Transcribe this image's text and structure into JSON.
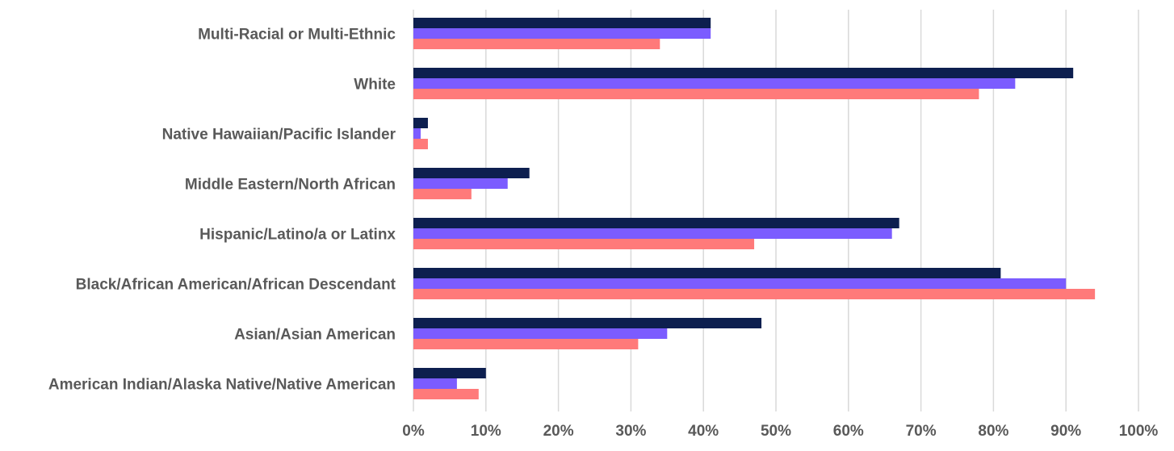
{
  "chart_data": {
    "type": "bar",
    "orientation": "horizontal",
    "categories": [
      "Multi-Racial or Multi-Ethnic",
      "White",
      "Native Hawaiian/Pacific Islander",
      "Middle Eastern/North African",
      "Hispanic/Latino/a or Latinx",
      "Black/African American/African Descendant",
      "Asian/Asian American",
      "American Indian/Alaska Native/Native American"
    ],
    "series": [
      {
        "color": "#0d1f4f",
        "values": [
          41,
          91,
          2,
          16,
          67,
          81,
          48,
          10
        ]
      },
      {
        "color": "#7b5cff",
        "values": [
          41,
          83,
          1,
          13,
          66,
          90,
          35,
          6
        ]
      },
      {
        "color": "#ff7a7a",
        "values": [
          34,
          78,
          2,
          8,
          47,
          94,
          31,
          9
        ]
      }
    ],
    "xlim": [
      0,
      100
    ],
    "ticks": [
      "0%",
      "10%",
      "20%",
      "30%",
      "40%",
      "50%",
      "60%",
      "70%",
      "80%",
      "90%",
      "100%"
    ],
    "grid": true,
    "legend": "none",
    "title": "",
    "xlabel": "",
    "ylabel": ""
  }
}
